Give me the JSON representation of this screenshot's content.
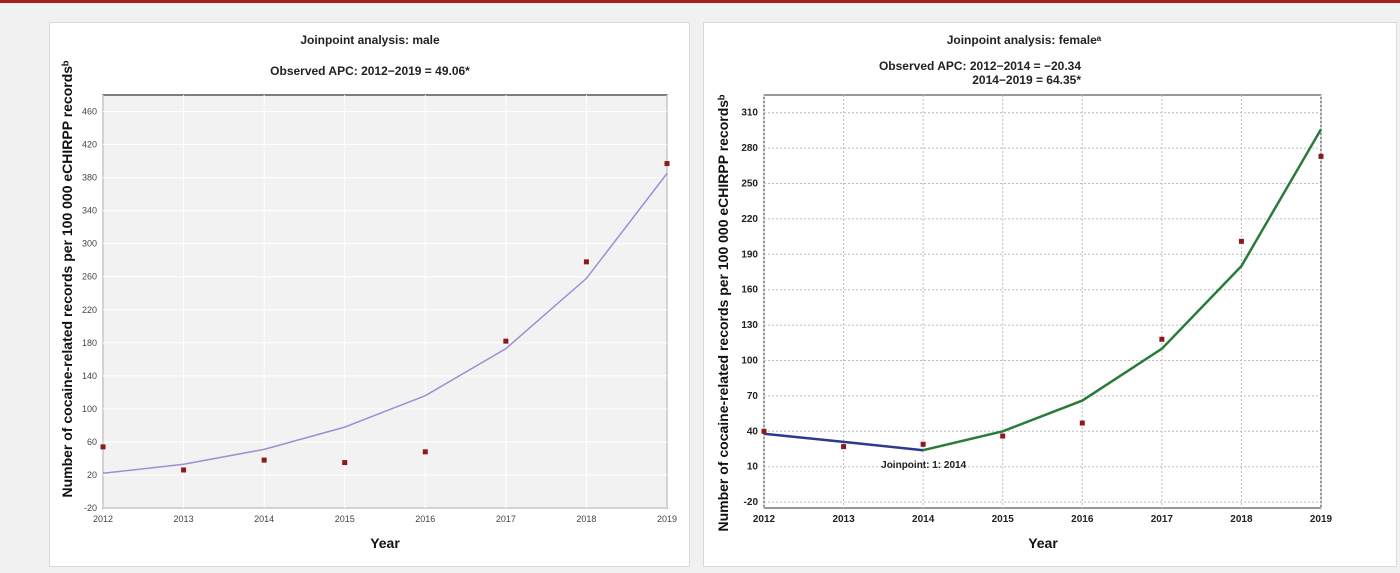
{
  "chart_data": [
    {
      "type": "line",
      "title": "Joinpoint analysis: male",
      "subtitle_lines": [
        "Observed APC: 2012−2019 = 49.06*"
      ],
      "xlabel": "Year",
      "ylabel": "Number of cocaine-related records per 100 000 eCHIRPP recordsᵇ",
      "x": [
        2012,
        2013,
        2014,
        2015,
        2016,
        2017,
        2018,
        2019
      ],
      "xlim": [
        2012,
        2019
      ],
      "ylim": [
        -20,
        480
      ],
      "yticks": [
        -20,
        20,
        60,
        100,
        140,
        180,
        220,
        260,
        300,
        340,
        380,
        420,
        460
      ],
      "grid": true,
      "series": [
        {
          "kind": "observed",
          "color": "#8b1a1a",
          "values": [
            54,
            26,
            38,
            35,
            48,
            182,
            278,
            397
          ]
        },
        {
          "kind": "modeled",
          "color": "#9d8fd6",
          "values": [
            22,
            33,
            51,
            78,
            116,
            173,
            258,
            385
          ]
        }
      ]
    },
    {
      "type": "line",
      "title": "Joinpoint analysis: femaleᵃ",
      "subtitle_lines": [
        "Observed APC: 2012−2014 = −20.34",
        "2014−2019 =  64.35*"
      ],
      "xlabel": "Year",
      "ylabel": "Number of cocaine-related records per 100 000 eCHIRPP recordsᵇ",
      "x": [
        2012,
        2013,
        2014,
        2015,
        2016,
        2017,
        2018,
        2019
      ],
      "xlim": [
        2012,
        2019
      ],
      "ylim": [
        -25,
        325
      ],
      "yticks": [
        -20,
        10,
        40,
        70,
        100,
        130,
        160,
        190,
        220,
        250,
        280,
        310
      ],
      "grid": true,
      "annotation": {
        "text": "Joinpoint: 1: 2014",
        "x": 2014
      },
      "series": [
        {
          "kind": "observed",
          "color": "#8b1a1a",
          "values": [
            40,
            27,
            29,
            36,
            47,
            118,
            201,
            273
          ]
        },
        {
          "kind": "modeled-segment-1",
          "color": "#2e3a8c",
          "x": [
            2012,
            2013,
            2014
          ],
          "values": [
            38,
            31,
            24
          ]
        },
        {
          "kind": "modeled-segment-2",
          "color": "#2a7a3a",
          "x": [
            2014,
            2015,
            2016,
            2017,
            2018,
            2019
          ],
          "values": [
            24,
            40,
            66,
            110,
            180,
            296
          ]
        }
      ]
    }
  ]
}
